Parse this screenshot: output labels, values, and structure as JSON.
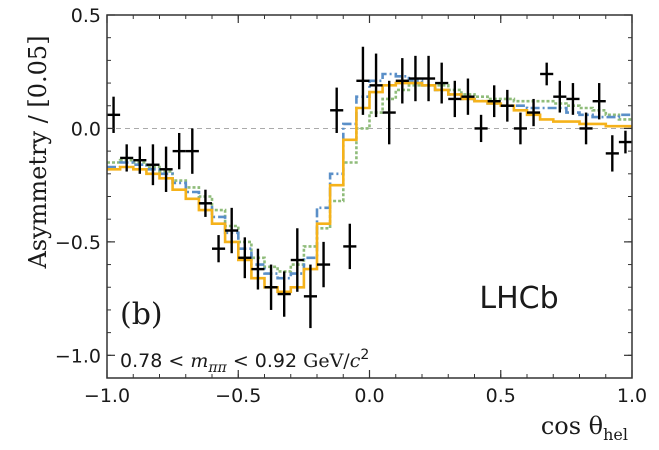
{
  "chart_data": {
    "type": "scatter",
    "title": "",
    "xlabel": "cos θ_hel",
    "xlabel_main": "cos θ",
    "xlabel_sub": "hel",
    "ylabel": "Asymmetry / [0.05]",
    "xlim": [
      -1.0,
      1.0
    ],
    "ylim": [
      -1.1,
      0.5
    ],
    "xticks": [
      -1.0,
      -0.5,
      0.0,
      0.5,
      1.0
    ],
    "xtick_labels": [
      "−1.0",
      "−0.5",
      "0.0",
      "0.5",
      "1.0"
    ],
    "yticks": [
      -1.0,
      -0.5,
      0.0,
      0.5
    ],
    "ytick_labels": [
      "−1.0",
      "−0.5",
      "0.0",
      "0.5"
    ],
    "reference_line_y": 0.0,
    "annotations": {
      "experiment": "LHCb",
      "panel": "(b)",
      "mass_range_low": "0.78",
      "mass_range_lt1": "<",
      "mass_var": "m",
      "mass_var_sub": "ππ",
      "mass_range_lt2": "<",
      "mass_range_high": "0.92",
      "mass_unit": "GeV/",
      "mass_unit_c": "c",
      "mass_unit_pow": "2"
    },
    "bin_width": 0.05,
    "data_points": {
      "x": [
        -0.975,
        -0.925,
        -0.875,
        -0.825,
        -0.775,
        -0.725,
        -0.675,
        -0.625,
        -0.575,
        -0.525,
        -0.475,
        -0.425,
        -0.375,
        -0.325,
        -0.275,
        -0.225,
        -0.175,
        -0.125,
        -0.075,
        -0.025,
        0.025,
        0.075,
        0.125,
        0.175,
        0.225,
        0.275,
        0.325,
        0.375,
        0.425,
        0.475,
        0.525,
        0.575,
        0.625,
        0.675,
        0.725,
        0.775,
        0.825,
        0.875,
        0.925,
        0.975
      ],
      "y": [
        0.06,
        -0.13,
        -0.14,
        -0.16,
        -0.18,
        -0.1,
        -0.1,
        -0.33,
        -0.53,
        -0.45,
        -0.57,
        -0.62,
        -0.7,
        -0.73,
        -0.58,
        -0.74,
        -0.6,
        0.08,
        -0.52,
        0.21,
        0.19,
        0.07,
        0.21,
        0.22,
        0.22,
        0.2,
        0.13,
        0.14,
        0.0,
        0.12,
        0.1,
        0.0,
        0.07,
        0.24,
        0.14,
        0.13,
        0.0,
        0.12,
        -0.11,
        -0.06
      ],
      "yerr": [
        0.08,
        0.06,
        0.06,
        0.09,
        0.1,
        0.08,
        0.1,
        0.06,
        0.06,
        0.1,
        0.09,
        0.09,
        0.1,
        0.1,
        0.14,
        0.14,
        0.1,
        0.1,
        0.1,
        0.15,
        0.14,
        0.14,
        0.1,
        0.1,
        0.1,
        0.09,
        0.08,
        0.08,
        0.06,
        0.07,
        0.07,
        0.07,
        0.06,
        0.05,
        0.07,
        0.07,
        0.07,
        0.08,
        0.08,
        0.05
      ]
    },
    "series": [
      {
        "color": "#f5b21a",
        "dash": "solid",
        "values": [
          -0.18,
          -0.17,
          -0.18,
          -0.2,
          -0.22,
          -0.27,
          -0.31,
          -0.36,
          -0.42,
          -0.5,
          -0.58,
          -0.66,
          -0.7,
          -0.72,
          -0.7,
          -0.62,
          -0.42,
          -0.25,
          -0.05,
          0.09,
          0.16,
          0.19,
          0.2,
          0.2,
          0.19,
          0.17,
          0.15,
          0.13,
          0.12,
          0.11,
          0.1,
          0.08,
          0.06,
          0.04,
          0.03,
          0.03,
          0.02,
          0.02,
          0.01,
          0.01
        ]
      },
      {
        "color": "#5a8fc8",
        "dash": "dashdot",
        "values": [
          -0.17,
          -0.15,
          -0.16,
          -0.18,
          -0.2,
          -0.24,
          -0.28,
          -0.33,
          -0.39,
          -0.46,
          -0.53,
          -0.6,
          -0.64,
          -0.66,
          -0.64,
          -0.57,
          -0.35,
          -0.2,
          0.02,
          0.14,
          0.21,
          0.24,
          0.23,
          0.21,
          0.19,
          0.17,
          0.15,
          0.13,
          0.12,
          0.11,
          0.1,
          0.1,
          0.09,
          0.09,
          0.09,
          0.07,
          0.06,
          0.05,
          0.05,
          0.06
        ]
      },
      {
        "color": "#8fbc7a",
        "dash": "dotted",
        "values": [
          -0.15,
          -0.14,
          -0.15,
          -0.17,
          -0.19,
          -0.23,
          -0.26,
          -0.3,
          -0.36,
          -0.43,
          -0.5,
          -0.57,
          -0.61,
          -0.63,
          -0.6,
          -0.52,
          -0.44,
          -0.32,
          -0.15,
          0.0,
          0.07,
          0.13,
          0.17,
          0.19,
          0.19,
          0.19,
          0.17,
          0.15,
          0.14,
          0.13,
          0.13,
          0.12,
          0.12,
          0.12,
          0.11,
          0.1,
          0.09,
          0.08,
          0.06,
          0.04
        ]
      }
    ]
  }
}
